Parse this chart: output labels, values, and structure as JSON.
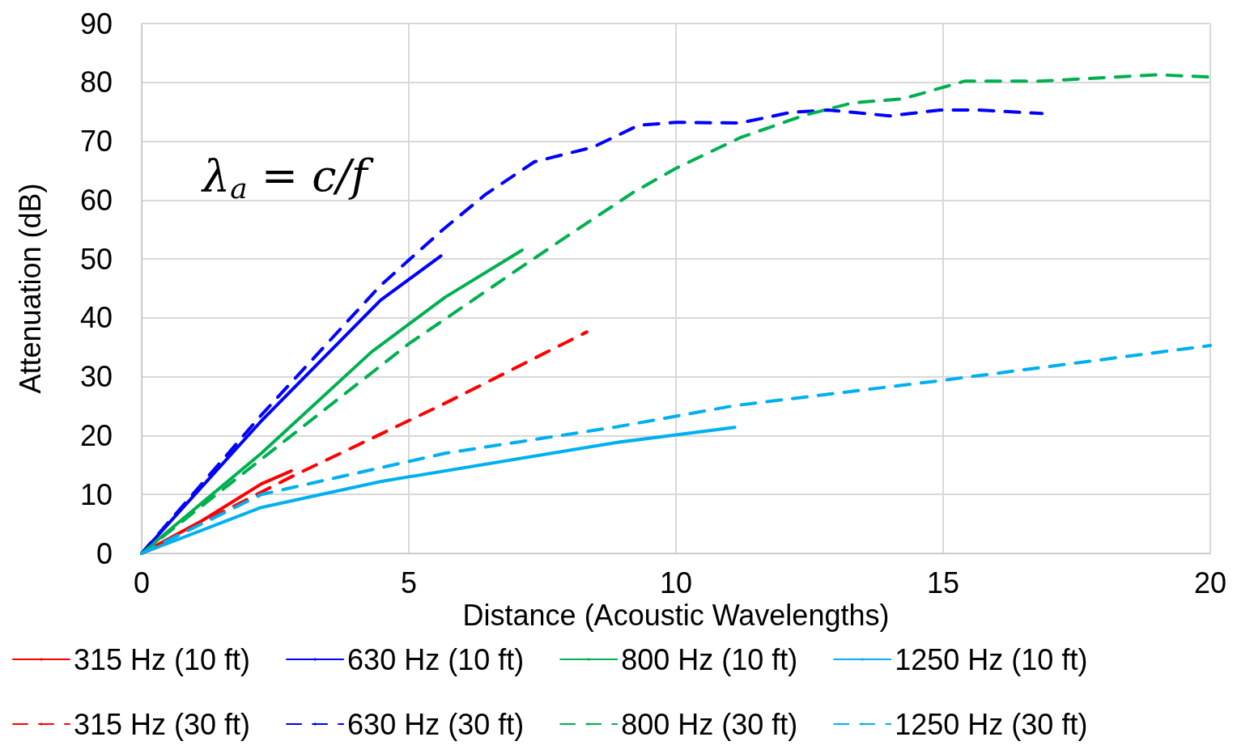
{
  "chart_data": {
    "type": "line",
    "xlabel": "Distance (Acoustic Wavelengths)",
    "ylabel": "Attenuation (dB)",
    "annotations": [
      "λ$_{a}$ = c/f"
    ],
    "xlim": [
      0,
      20
    ],
    "xticks": [
      0,
      5,
      10,
      15,
      20
    ],
    "ylim": [
      0,
      90
    ],
    "yticks": [
      0,
      10,
      20,
      30,
      40,
      50,
      60,
      70,
      80,
      90
    ],
    "grid": true,
    "legend": "bottom",
    "marker": "none",
    "series": [
      {
        "name": "315 Hz (10 ft)",
        "color": "#ff0000",
        "line_style": "solid",
        "x": [
          0,
          1.12,
          2.24,
          2.8
        ],
        "values": [
          0,
          5.5,
          11.8,
          14
        ]
      },
      {
        "name": "630 Hz (10 ft)",
        "color": "#0000ff",
        "line_style": "solid",
        "x": [
          0,
          2.24,
          4.47,
          5.6
        ],
        "values": [
          0,
          22.5,
          43,
          50.5
        ]
      },
      {
        "name": "800 Hz (10 ft)",
        "color": "#00b050",
        "line_style": "solid",
        "x": [
          0,
          2.24,
          4.3,
          5.68,
          7.12
        ],
        "values": [
          0,
          17,
          34.2,
          43.5,
          51.5
        ]
      },
      {
        "name": "1250 Hz (10 ft)",
        "color": "#00b0f0",
        "line_style": "solid",
        "x": [
          0,
          2.24,
          4.47,
          8.86,
          11.1
        ],
        "values": [
          0,
          7.8,
          12.2,
          18.8,
          21.4
        ]
      },
      {
        "name": "315 Hz (30 ft)",
        "color": "#ff0000",
        "line_style": "dashed",
        "x": [
          0,
          2.8,
          5.68,
          8.33
        ],
        "values": [
          0,
          13,
          25.5,
          37.6
        ]
      },
      {
        "name": "630 Hz (30 ft)",
        "color": "#0000ff",
        "line_style": "dashed",
        "x": [
          0,
          2.24,
          4.47,
          5.64,
          6.44,
          7.35,
          8.45,
          9.3,
          10,
          11.2,
          12.15,
          12.85,
          14,
          14.95,
          15.65,
          16.85
        ],
        "values": [
          0,
          23.5,
          45.5,
          55,
          61,
          66.5,
          69,
          72.7,
          73.2,
          73.1,
          74.9,
          75.3,
          74.3,
          75.3,
          75.3,
          74.7
        ]
      },
      {
        "name": "800 Hz (30 ft)",
        "color": "#00b050",
        "line_style": "dashed",
        "x": [
          0,
          2.24,
          5,
          7.1,
          8.15,
          9.2,
          10,
          11.2,
          12.4,
          13.3,
          14.25,
          15.4,
          16.8,
          19,
          20
        ],
        "values": [
          0,
          16,
          35.6,
          48.6,
          55,
          61.3,
          65.4,
          70.6,
          74.4,
          76.5,
          77.2,
          80.2,
          80.2,
          81.3,
          80.9
        ]
      },
      {
        "name": "1250 Hz (30 ft)",
        "color": "#00b0f0",
        "line_style": "dashed",
        "x": [
          0,
          2.24,
          5.68,
          8.9,
          11.1,
          15,
          20
        ],
        "values": [
          0,
          10,
          17,
          21.5,
          25.1,
          29.4,
          35.3
        ]
      }
    ]
  }
}
